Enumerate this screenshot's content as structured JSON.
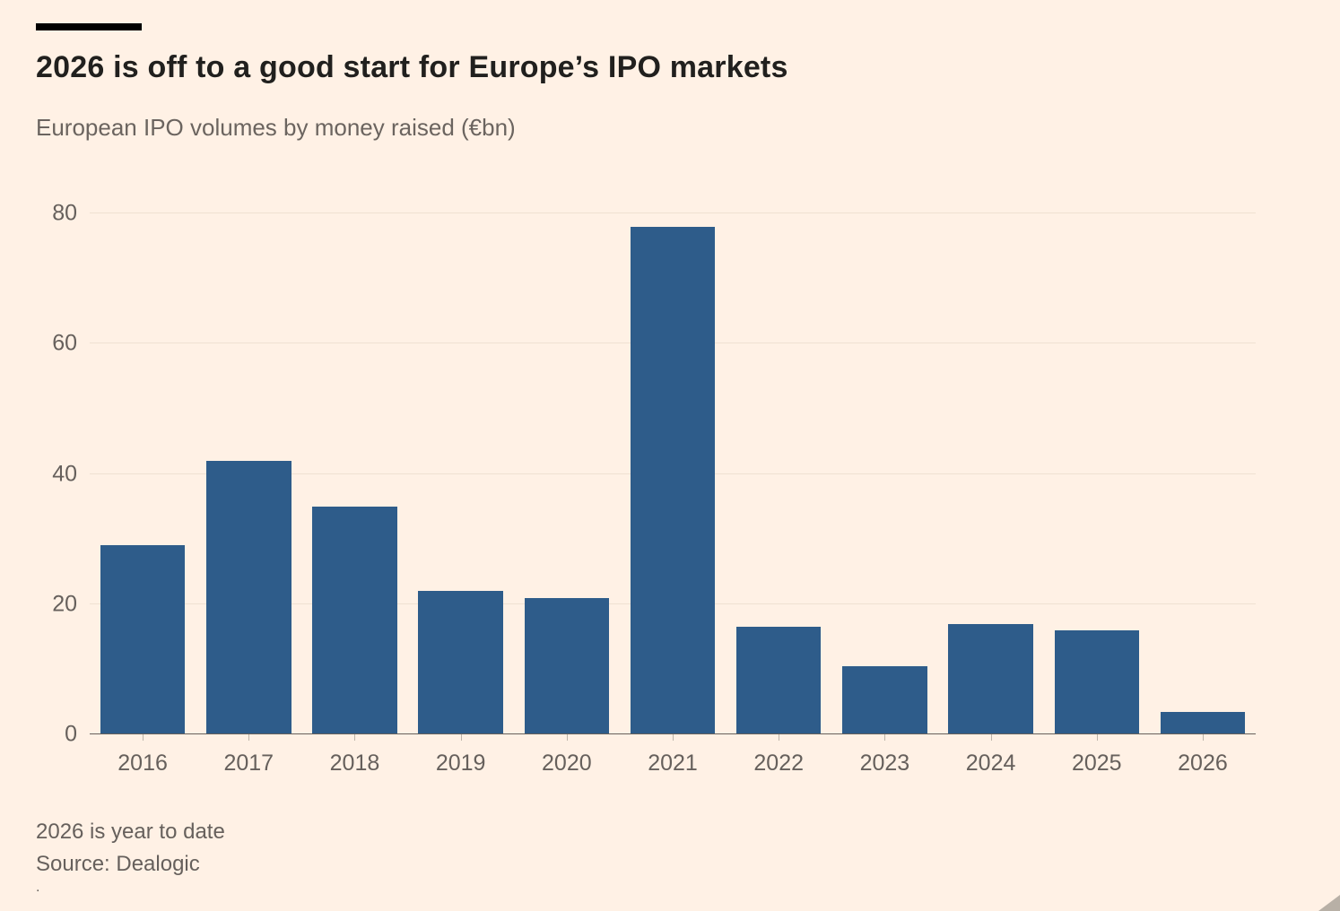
{
  "background_color": "#fff1e5",
  "accent_color": "#2e5c8a",
  "header": {
    "title": "2026 is off to a good start for Europe’s IPO markets",
    "subtitle": "European IPO volumes by money raised (€bn)"
  },
  "footer": {
    "note": "2026 is year to date",
    "source": "Source: Dealogic",
    "dot": "."
  },
  "chart_data": {
    "type": "bar",
    "categories": [
      "2016",
      "2017",
      "2018",
      "2019",
      "2020",
      "2021",
      "2022",
      "2023",
      "2024",
      "2025",
      "2026"
    ],
    "values": [
      29,
      42,
      35,
      22,
      21,
      78,
      16.5,
      10.5,
      17,
      16,
      3.5
    ],
    "title": "2026 is off to a good start for Europe’s IPO markets",
    "subtitle": "European IPO volumes by money raised (€bn)",
    "xlabel": "",
    "ylabel": "",
    "ylim": [
      0,
      80
    ],
    "yticks": [
      0,
      20,
      40,
      60,
      80
    ],
    "grid": true,
    "legend": "none",
    "bar_color": "#2e5c8a"
  }
}
